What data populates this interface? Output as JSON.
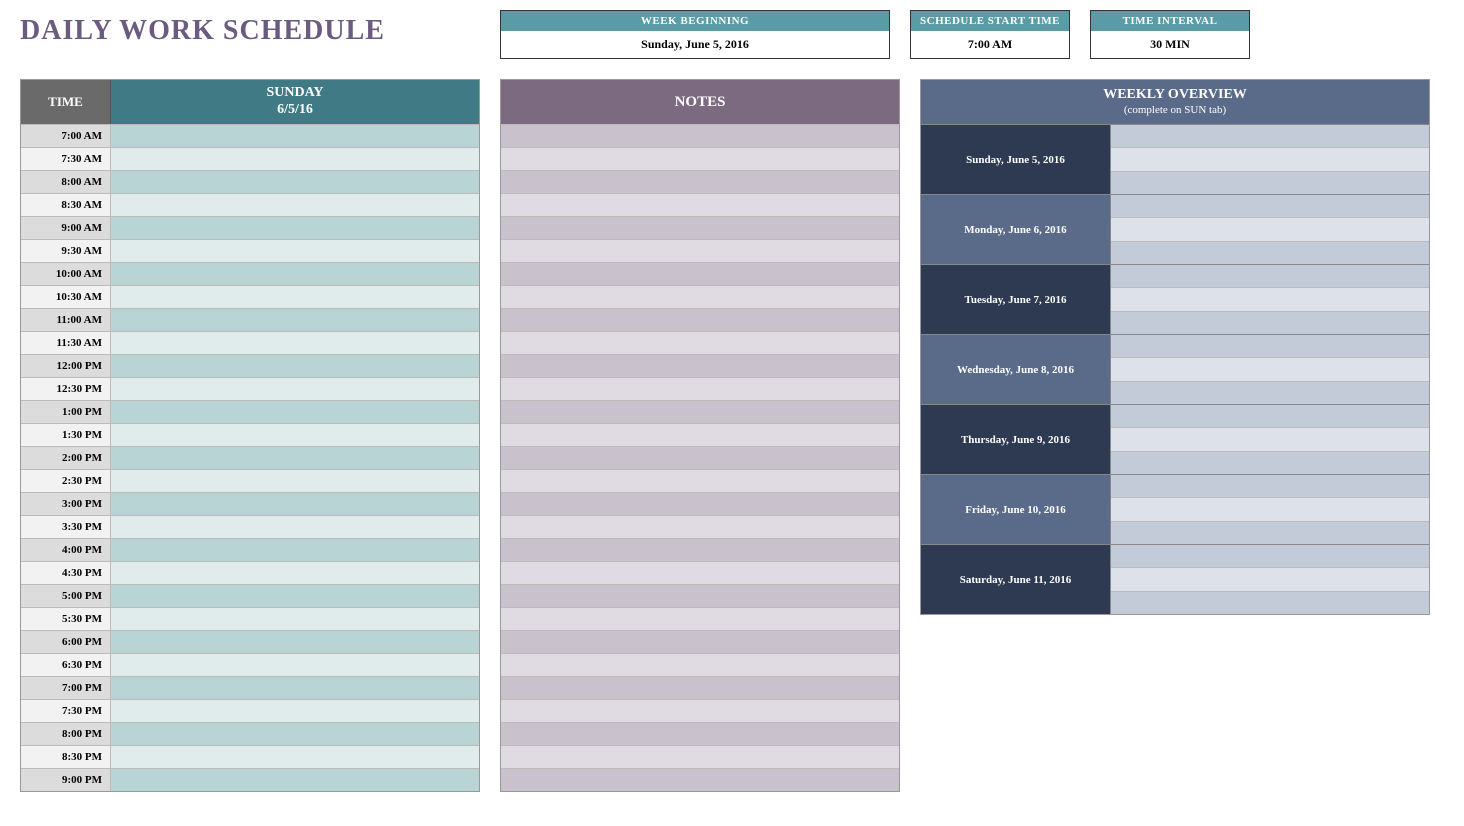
{
  "title": "DAILY WORK SCHEDULE",
  "info": {
    "week_beginning": {
      "label": "WEEK BEGINNING",
      "value": "Sunday, June 5, 2016"
    },
    "start_time": {
      "label": "SCHEDULE START TIME",
      "value": "7:00 AM"
    },
    "interval": {
      "label": "TIME INTERVAL",
      "value": "30 MIN"
    }
  },
  "schedule": {
    "time_header": "TIME",
    "day_name": "SUNDAY",
    "day_date": "6/5/16",
    "colors": {
      "time_odd_bg": "#dcdcdc",
      "time_even_bg": "#f2f2f2",
      "event_odd_bg": "#b8d4d4",
      "event_even_bg": "#e0ecec"
    },
    "rows": [
      "7:00 AM",
      "7:30 AM",
      "8:00 AM",
      "8:30 AM",
      "9:00 AM",
      "9:30 AM",
      "10:00 AM",
      "10:30 AM",
      "11:00 AM",
      "11:30 AM",
      "12:00 PM",
      "12:30 PM",
      "1:00 PM",
      "1:30 PM",
      "2:00 PM",
      "2:30 PM",
      "3:00 PM",
      "3:30 PM",
      "4:00 PM",
      "4:30 PM",
      "5:00 PM",
      "5:30 PM",
      "6:00 PM",
      "6:30 PM",
      "7:00 PM",
      "7:30 PM",
      "8:00 PM",
      "8:30 PM",
      "9:00 PM"
    ]
  },
  "notes": {
    "header": "NOTES",
    "colors": {
      "odd_bg": "#c9c2cc",
      "even_bg": "#e0dbe2"
    },
    "row_count": 29
  },
  "overview": {
    "title": "WEEKLY OVERVIEW",
    "subtitle": "(complete on SUN tab)",
    "cell_colors": {
      "odd_bg": "#c4cbd8",
      "even_bg": "#dde1e9"
    },
    "days": [
      {
        "label": "Sunday, June 5, 2016",
        "bg": "#2d3a52"
      },
      {
        "label": "Monday, June 6, 2016",
        "bg": "#5a6b8a"
      },
      {
        "label": "Tuesday, June 7, 2016",
        "bg": "#2d3a52"
      },
      {
        "label": "Wednesday, June 8, 2016",
        "bg": "#5a6b8a"
      },
      {
        "label": "Thursday, June 9, 2016",
        "bg": "#2d3a52"
      },
      {
        "label": "Friday, June 10, 2016",
        "bg": "#5a6b8a"
      },
      {
        "label": "Saturday, June 11, 2016",
        "bg": "#2d3a52"
      }
    ]
  }
}
